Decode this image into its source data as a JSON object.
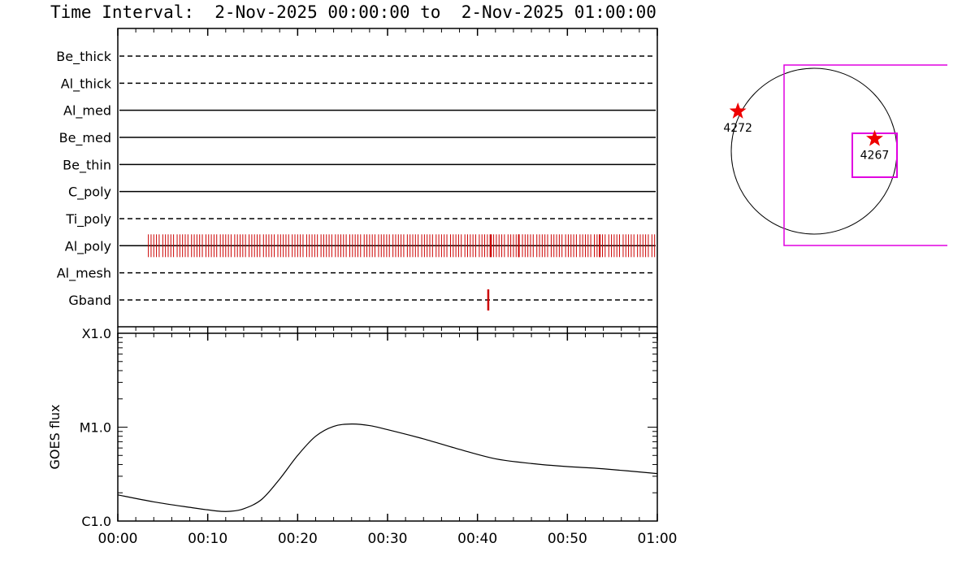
{
  "title": "Time Interval:  2-Nov-2025 00:00:00 to  2-Nov-2025 01:00:00",
  "colors": {
    "axis": "#000000",
    "event": "#cc0000",
    "marker": "#ee0000",
    "fov": "#e000e0"
  },
  "chart_data": [
    {
      "type": "line",
      "name": "filter-timeline",
      "x_range_min": [
        0,
        60
      ],
      "categories": [
        "Be_thick",
        "Al_thick",
        "Al_med",
        "Be_med",
        "Be_thin",
        "C_poly",
        "Ti_poly",
        "Al_poly",
        "Al_mesh",
        "Gband"
      ],
      "line_style": [
        "dashed",
        "dashed",
        "solid",
        "solid",
        "solid",
        "solid",
        "dashed",
        "solid",
        "dashed",
        "dashed"
      ],
      "events": {
        "Al_poly": [
          3.4,
          3.7,
          4.0,
          4.3,
          4.6,
          5.0,
          5.3,
          5.6,
          5.9,
          6.2,
          6.6,
          6.9,
          7.2,
          7.5,
          7.8,
          8.2,
          8.5,
          8.8,
          9.1,
          9.4,
          9.8,
          10.1,
          10.4,
          10.7,
          11.0,
          11.4,
          11.7,
          12.0,
          12.3,
          12.6,
          13.0,
          13.3,
          13.6,
          13.9,
          14.2,
          14.6,
          14.9,
          15.2,
          15.5,
          15.8,
          16.2,
          16.5,
          16.8,
          17.1,
          17.4,
          17.8,
          18.1,
          18.4,
          18.7,
          19.0,
          19.4,
          19.7,
          20.0,
          20.3,
          20.6,
          21.0,
          21.3,
          21.6,
          21.9,
          22.2,
          22.6,
          22.9,
          23.2,
          23.5,
          23.8,
          24.2,
          24.5,
          24.8,
          25.1,
          25.4,
          25.8,
          26.1,
          26.4,
          26.7,
          27.0,
          27.4,
          27.7,
          28.0,
          28.3,
          28.6,
          29.0,
          29.3,
          29.6,
          29.9,
          30.2,
          30.6,
          30.9,
          31.2,
          31.5,
          31.8,
          32.2,
          32.5,
          32.8,
          33.1,
          33.4,
          33.8,
          34.1,
          34.4,
          34.7,
          35.0,
          35.4,
          35.7,
          36.0,
          36.3,
          36.6,
          37.0,
          37.3,
          37.6,
          37.9,
          38.2,
          38.6,
          38.9,
          39.2,
          39.5,
          39.8,
          40.2,
          40.5,
          40.8,
          41.1,
          41.4,
          41.8,
          42.1,
          42.4,
          42.7,
          43.0,
          43.4,
          43.7,
          44.0,
          44.3,
          44.6,
          45.0,
          45.3,
          45.6,
          45.9,
          46.2,
          46.6,
          46.9,
          47.2,
          47.5,
          47.8,
          48.2,
          48.5,
          48.8,
          49.1,
          49.4,
          49.8,
          50.1,
          50.4,
          50.7,
          51.0,
          51.4,
          51.7,
          52.0,
          52.3,
          52.6,
          53.0,
          53.3,
          53.6,
          53.9,
          54.2,
          54.6,
          54.9,
          55.2,
          55.5,
          55.8,
          56.2,
          56.5,
          56.8,
          57.1,
          57.4,
          57.8,
          58.1,
          58.4,
          58.7,
          59.0,
          59.4,
          59.7
        ],
        "Gband": [
          41.2
        ]
      },
      "thick_events": {
        "Al_poly": [
          41.5,
          44.6,
          53.6
        ]
      }
    },
    {
      "type": "line",
      "name": "goes-flux",
      "ylabel": "GOES flux",
      "yscale": "log",
      "ylim": [
        1e-06,
        0.0001
      ],
      "yticks": [
        {
          "value": 1e-06,
          "label": "C1.0"
        },
        {
          "value": 1e-05,
          "label": "M1.0"
        },
        {
          "value": 0.0001,
          "label": "X1.0"
        }
      ],
      "xlim": [
        0,
        60
      ],
      "xticks": [
        {
          "value": 0,
          "label": "00:00"
        },
        {
          "value": 10,
          "label": "00:10"
        },
        {
          "value": 20,
          "label": "00:20"
        },
        {
          "value": 30,
          "label": "00:30"
        },
        {
          "value": 40,
          "label": "00:40"
        },
        {
          "value": 50,
          "label": "00:50"
        },
        {
          "value": 60,
          "label": "01:00"
        }
      ],
      "x": [
        0,
        4,
        8,
        11,
        12.5,
        14,
        16,
        18,
        20,
        22,
        24,
        26,
        28,
        30,
        34,
        38,
        42,
        46,
        50,
        54,
        60
      ],
      "y": [
        1.9e-06,
        1.6e-06,
        1.4e-06,
        1.28e-06,
        1.27e-06,
        1.35e-06,
        1.7e-06,
        2.8e-06,
        5e-06,
        8e-06,
        1.02e-05,
        1.08e-05,
        1.04e-05,
        9.4e-06,
        7.5e-06,
        5.8e-06,
        4.6e-06,
        4.1e-06,
        3.8e-06,
        3.6e-06,
        3.2e-06
      ]
    }
  ],
  "solar_map": {
    "markers": [
      {
        "label": "4272",
        "pos": [
          -0.92,
          -0.48
        ]
      },
      {
        "label": "4267",
        "pos": [
          0.73,
          -0.15
        ]
      }
    ]
  }
}
